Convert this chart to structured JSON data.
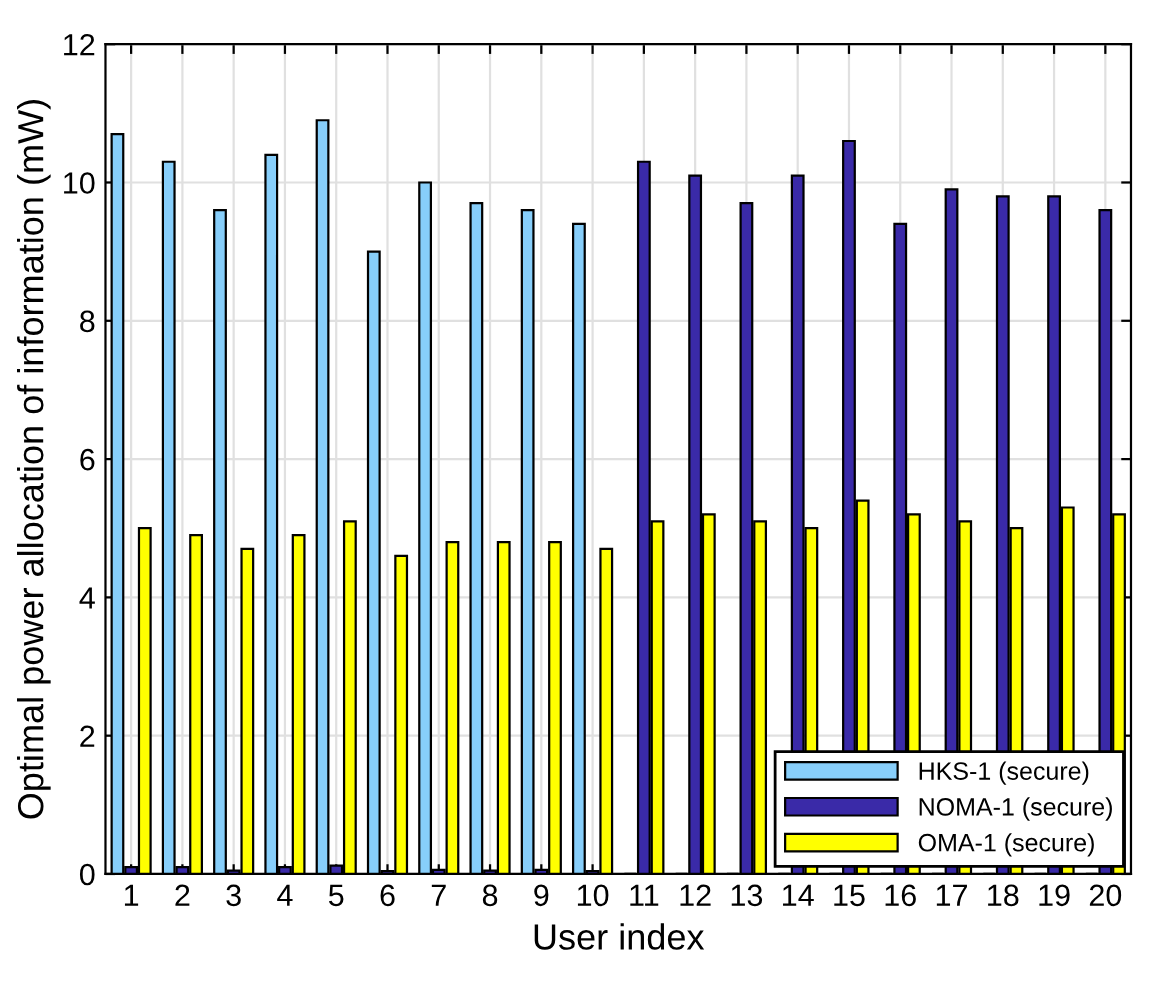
{
  "chart_data": {
    "type": "bar",
    "xlabel": "User index",
    "ylabel": "Optimal power allocation of information (mW)",
    "categories": [
      "1",
      "2",
      "3",
      "4",
      "5",
      "6",
      "7",
      "8",
      "9",
      "10",
      "11",
      "12",
      "13",
      "14",
      "15",
      "16",
      "17",
      "18",
      "19",
      "20"
    ],
    "series": [
      {
        "name": "HKS-1 (secure)",
        "color": "#87cefa",
        "values": [
          10.7,
          10.3,
          9.6,
          10.4,
          10.9,
          9.0,
          10.0,
          9.7,
          9.6,
          9.4,
          0,
          0,
          0,
          0,
          0,
          0,
          0,
          0,
          0,
          0
        ]
      },
      {
        "name": "NOMA-1 (secure)",
        "color": "#3a2aa8",
        "values": [
          0.1,
          0.1,
          0.05,
          0.1,
          0.12,
          0.04,
          0.06,
          0.05,
          0.06,
          0.04,
          10.3,
          10.1,
          9.7,
          10.1,
          10.6,
          9.4,
          9.9,
          9.8,
          9.8,
          9.6
        ]
      },
      {
        "name": "OMA-1 (secure)",
        "color": "#ffff00",
        "values": [
          5.0,
          4.9,
          4.7,
          4.9,
          5.1,
          4.6,
          4.8,
          4.8,
          4.8,
          4.7,
          5.1,
          5.2,
          5.1,
          5.0,
          5.4,
          5.2,
          5.1,
          5.0,
          5.3,
          5.2
        ]
      }
    ],
    "ylim": [
      0,
      12
    ],
    "yticks": [
      0,
      2,
      4,
      6,
      8,
      10,
      12
    ],
    "grid": true,
    "legend": "bottom right"
  }
}
